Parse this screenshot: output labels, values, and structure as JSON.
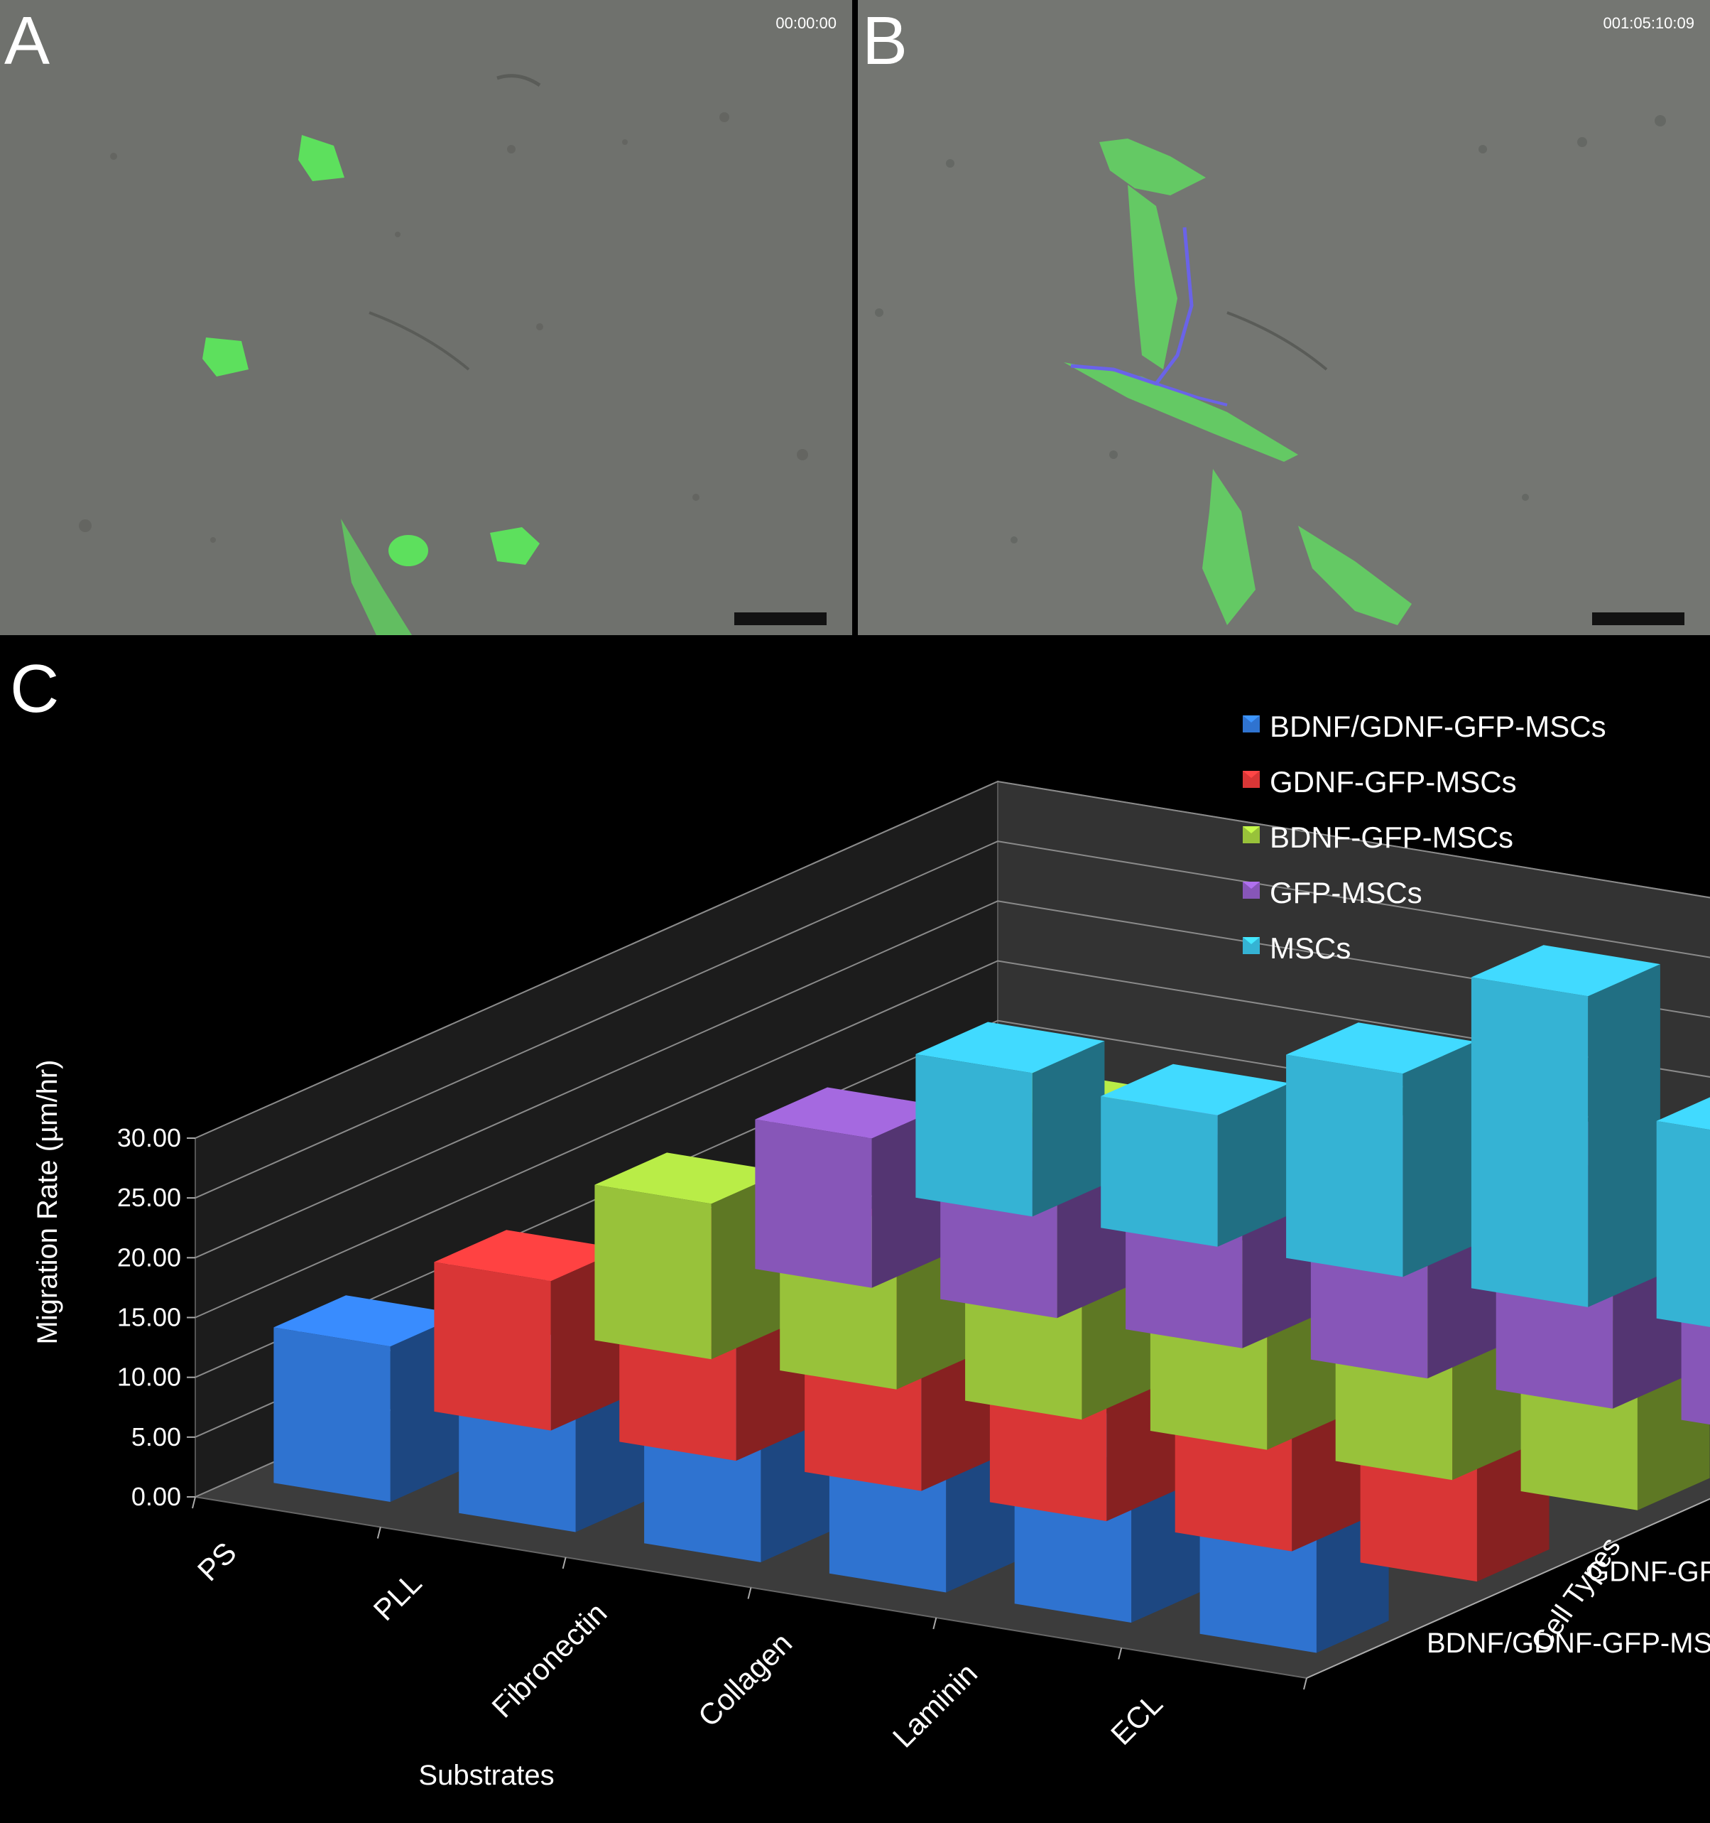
{
  "panel_a": {
    "label": "A",
    "timestamp": "00:00:00"
  },
  "panel_b": {
    "label": "B",
    "timestamp": "001:05:10:09"
  },
  "panel_c": {
    "label": "C"
  },
  "chart_data": {
    "type": "bar",
    "title": "",
    "xlabel": "Substrates",
    "ylabel": "Migration Rate (µm/hr)",
    "zlabel": "Cell Types",
    "categories": [
      "PS",
      "PLL",
      "Fibronectin",
      "Collagen",
      "Laminin",
      "ECL"
    ],
    "ylim": [
      0,
      30
    ],
    "y_ticks": [
      "0.00",
      "5.00",
      "10.00",
      "15.00",
      "20.00",
      "25.00",
      "30.00"
    ],
    "grid": true,
    "legend_position": "top-right",
    "series": [
      {
        "name": "MSCs",
        "color": "#35b3d4",
        "values": [
          12.0,
          11.0,
          17.0,
          26.0,
          16.5,
          21.0
        ]
      },
      {
        "name": "GFP-MSCs",
        "color": "#8756b8",
        "values": [
          12.5,
          12.0,
          17.5,
          18.0,
          20.0,
          17.0
        ]
      },
      {
        "name": "BDNF-GFP-MSCs",
        "color": "#98c23a",
        "values": [
          13.0,
          10.5,
          25.0,
          13.5,
          21.5,
          15.5
        ]
      },
      {
        "name": "GDNF-GFP-MSCs",
        "color": "#d93636",
        "values": [
          12.5,
          17.0,
          19.5,
          18.5,
          15.5,
          19.5
        ]
      },
      {
        "name": "BDNF/GDNF-GFP-MSCs",
        "color": "#2f73d0",
        "values": [
          13.0,
          12.5,
          24.5,
          19.5,
          13.5,
          24.5
        ]
      }
    ]
  }
}
